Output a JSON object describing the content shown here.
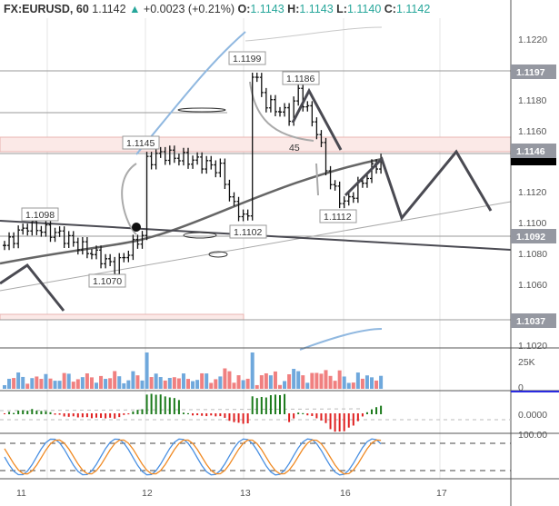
{
  "header": {
    "symbol": "FX:EURUSD, 60",
    "last": "1.1142",
    "change": "+0.0023 (+0.21%)",
    "o_label": "O:",
    "o": "1.1143",
    "h_label": "H:",
    "h": "1.1143",
    "l_label": "L:",
    "l": "1.1140",
    "c_label": "C:",
    "c": "1.1142"
  },
  "price_axis": {
    "ticks": [
      "1.1220",
      "1.1180",
      "1.1160",
      "1.1120",
      "1.1100",
      "1.1080",
      "1.1060",
      "1.1020"
    ],
    "tags": [
      "1.1197",
      "1.1146",
      "1.1092",
      "1.1037"
    ],
    "current": "1.1142"
  },
  "volume_axis": {
    "ticks": [
      "25K",
      "0"
    ]
  },
  "osc_axis": {
    "ticks": [
      "0.0000"
    ]
  },
  "stoch_axis": {
    "ticks": [
      "100.00"
    ]
  },
  "time_axis": {
    "labels": [
      "11",
      "12",
      "13",
      "16",
      "17"
    ]
  },
  "annotations": {
    "a1": "1.1098",
    "a2": "1.1070",
    "a3": "1.1145",
    "a4": "1.1102",
    "a5": "1.1199",
    "a6": "1.1186",
    "a7": "1.1112",
    "angle": "45"
  },
  "colors": {
    "up": "#26a69a",
    "down": "#ef5350",
    "tag": "#9598a1",
    "current": "#000000",
    "pattern": "#4a4a52"
  },
  "chart_data": {
    "type": "line",
    "price_path": [
      [
        0,
        1.1085
      ],
      [
        5,
        1.1098
      ],
      [
        12,
        1.1092
      ],
      [
        22,
        1.1075
      ],
      [
        24,
        1.107
      ],
      [
        28,
        1.1085
      ],
      [
        30,
        1.1092
      ],
      [
        31,
        1.114
      ],
      [
        34,
        1.1145
      ],
      [
        42,
        1.114
      ],
      [
        47,
        1.1135
      ],
      [
        50,
        1.111
      ],
      [
        53,
        1.1102
      ],
      [
        54,
        1.1199
      ],
      [
        57,
        1.1178
      ],
      [
        62,
        1.117
      ],
      [
        64,
        1.1186
      ],
      [
        68,
        1.116
      ],
      [
        71,
        1.1125
      ],
      [
        74,
        1.1112
      ],
      [
        82,
        1.1142
      ]
    ]
  }
}
